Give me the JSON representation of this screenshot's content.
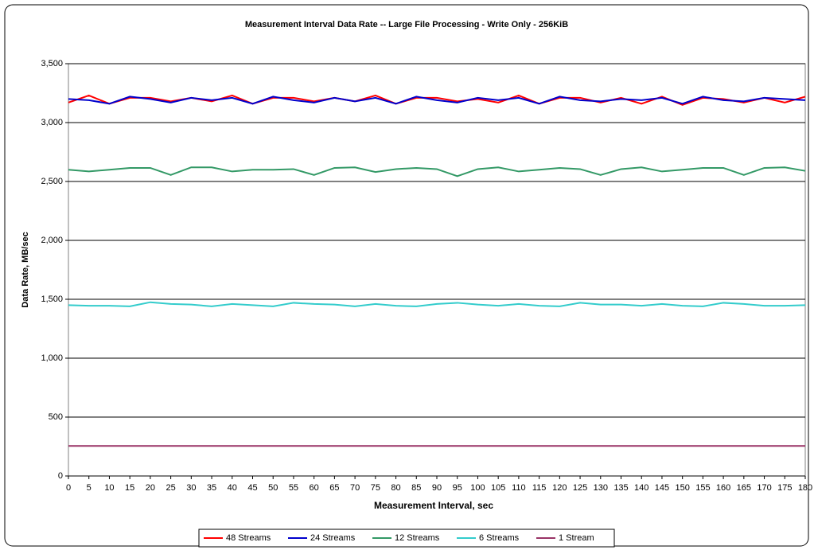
{
  "chart_data": {
    "type": "line",
    "title": "Measurement Interval Data Rate -- Large File Processing - Write Only - 256KiB",
    "xlabel": "Measurement Interval, sec",
    "ylabel": "Data Rate, MB/sec",
    "x": [
      0,
      5,
      10,
      15,
      20,
      25,
      30,
      35,
      40,
      45,
      50,
      55,
      60,
      65,
      70,
      75,
      80,
      85,
      90,
      95,
      100,
      105,
      110,
      115,
      120,
      125,
      130,
      135,
      140,
      145,
      150,
      155,
      160,
      165,
      170,
      175,
      180
    ],
    "xlim": [
      0,
      180
    ],
    "xticks": [
      0,
      5,
      10,
      15,
      20,
      25,
      30,
      35,
      40,
      45,
      50,
      55,
      60,
      65,
      70,
      75,
      80,
      85,
      90,
      95,
      100,
      105,
      110,
      115,
      120,
      125,
      130,
      135,
      140,
      145,
      150,
      155,
      160,
      165,
      170,
      175,
      180
    ],
    "ylim": [
      0,
      3500
    ],
    "yticks": [
      0,
      500,
      {
        "value": 1000,
        "label": "1,000"
      },
      {
        "value": 1500,
        "label": "1,500"
      },
      {
        "value": 2000,
        "label": "2,000"
      },
      {
        "value": 2500,
        "label": "2,500"
      },
      {
        "value": 3000,
        "label": "3,000"
      },
      {
        "value": 3500,
        "label": "3,500"
      }
    ],
    "grid": true,
    "legend": "bottom",
    "series": [
      {
        "name": "48 Streams",
        "color": "#ff0000",
        "values": [
          3170,
          3230,
          3160,
          3210,
          3210,
          3180,
          3210,
          3180,
          3230,
          3160,
          3210,
          3210,
          3180,
          3210,
          3180,
          3230,
          3160,
          3210,
          3210,
          3180,
          3200,
          3170,
          3230,
          3160,
          3210,
          3210,
          3170,
          3210,
          3160,
          3220,
          3150,
          3210,
          3200,
          3170,
          3210,
          3170,
          3220
        ]
      },
      {
        "name": "24 Streams",
        "color": "#0000cc",
        "values": [
          3200,
          3190,
          3160,
          3220,
          3200,
          3170,
          3210,
          3190,
          3210,
          3160,
          3220,
          3190,
          3170,
          3210,
          3180,
          3210,
          3160,
          3220,
          3190,
          3170,
          3210,
          3190,
          3210,
          3160,
          3220,
          3190,
          3180,
          3200,
          3190,
          3210,
          3160,
          3220,
          3190,
          3180,
          3210,
          3200,
          3190
        ]
      },
      {
        "name": "12 Streams",
        "color": "#339966",
        "values": [
          2600,
          2585,
          2600,
          2615,
          2615,
          2555,
          2620,
          2620,
          2585,
          2600,
          2600,
          2605,
          2555,
          2615,
          2620,
          2580,
          2605,
          2615,
          2605,
          2545,
          2605,
          2620,
          2585,
          2600,
          2615,
          2605,
          2555,
          2605,
          2620,
          2585,
          2600,
          2615,
          2615,
          2555,
          2615,
          2620,
          2590
        ]
      },
      {
        "name": "6 Streams",
        "color": "#33cccc",
        "values": [
          1450,
          1445,
          1445,
          1440,
          1475,
          1460,
          1455,
          1440,
          1460,
          1450,
          1440,
          1470,
          1460,
          1455,
          1440,
          1460,
          1445,
          1440,
          1460,
          1470,
          1455,
          1445,
          1460,
          1445,
          1440,
          1470,
          1455,
          1455,
          1445,
          1460,
          1445,
          1440,
          1470,
          1460,
          1445,
          1445,
          1450
        ]
      },
      {
        "name": "1 Stream",
        "color": "#993366",
        "values": [
          255,
          255,
          255,
          255,
          255,
          255,
          255,
          255,
          255,
          255,
          255,
          255,
          255,
          255,
          255,
          255,
          255,
          255,
          255,
          255,
          255,
          255,
          255,
          255,
          255,
          255,
          255,
          255,
          255,
          255,
          255,
          255,
          255,
          255,
          255,
          255,
          255
        ]
      }
    ]
  }
}
